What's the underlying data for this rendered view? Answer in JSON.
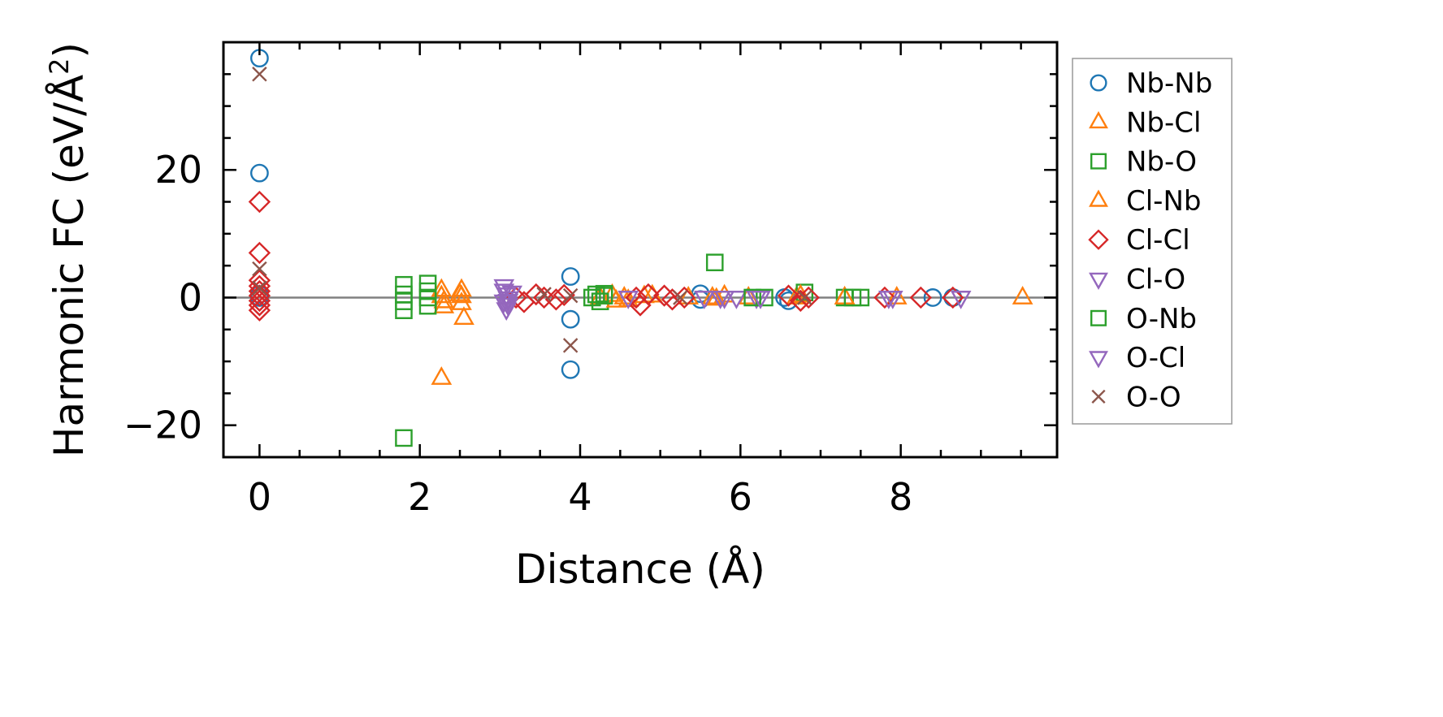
{
  "chart_data": {
    "type": "scatter",
    "xlabel": "Distance (Å)",
    "ylabel": "Harmonic FC (eV/Å²)",
    "ylabel_main": "Harmonic FC (eV/Å",
    "ylabel_sup": "2",
    "ylabel_end": ")",
    "xlim": [
      -0.45,
      9.95
    ],
    "ylim": [
      -25,
      40
    ],
    "xticks": [
      0,
      2,
      4,
      6,
      8
    ],
    "xtick_labels": [
      "0",
      "2",
      "4",
      "6",
      "8"
    ],
    "yticks": [
      -20,
      0,
      20
    ],
    "ytick_labels": [
      "−20",
      "0",
      "20"
    ],
    "zero_line": true,
    "grid": false,
    "legend_position": "outside-right",
    "series": [
      {
        "name": "Nb-Nb",
        "marker": "circle",
        "color": "#1f77b4",
        "x": [
          0,
          0,
          0,
          0,
          3.88,
          3.88,
          3.88,
          5.5,
          5.5,
          6.55,
          6.6,
          8.4,
          8.65
        ],
        "y": [
          37.5,
          19.5,
          0,
          0.5,
          3.3,
          -3.4,
          -11.3,
          0.6,
          -0.3,
          0,
          -0.5,
          0,
          0
        ]
      },
      {
        "name": "Nb-Cl",
        "marker": "triangle-up",
        "color": "#ff7f0e",
        "x": [
          2.27,
          2.27,
          2.3,
          2.3,
          2.52,
          2.52,
          2.52,
          2.55,
          2.27,
          4.25,
          4.4,
          4.6,
          4.8,
          5.65,
          5.8,
          6.1,
          6.7,
          7.3,
          7.95,
          9.52
        ],
        "y": [
          1.2,
          0.2,
          -0.6,
          -1.4,
          1.2,
          0.2,
          -0.9,
          -3.2,
          -12.6,
          0,
          0.4,
          -0.4,
          0.2,
          0,
          0.3,
          0,
          0,
          0,
          0,
          0
        ]
      },
      {
        "name": "Nb-O",
        "marker": "square",
        "color": "#2ca02c",
        "x": [
          1.8,
          1.8,
          1.8,
          1.8,
          2.1,
          2.1,
          2.1,
          2.1,
          1.8,
          4.2,
          4.3,
          4.25,
          5.68,
          6.3,
          6.8,
          7.3,
          7.5
        ],
        "y": [
          2,
          0.5,
          -0.6,
          -2,
          2.2,
          1,
          0,
          -1.3,
          -22,
          0.5,
          0.6,
          -0.6,
          5.5,
          0,
          0.8,
          0,
          0
        ]
      },
      {
        "name": "Cl-Nb",
        "marker": "triangle-up",
        "color": "#ff7f0e",
        "x": [
          2.5,
          4.45,
          4.55,
          4.9,
          5.35,
          5.7,
          6.75,
          7.3
        ],
        "y": [
          0.5,
          -0.5,
          0,
          0.3,
          0,
          -0.2,
          0.3,
          0
        ]
      },
      {
        "name": "Cl-Cl",
        "marker": "diamond",
        "color": "#d62728",
        "x": [
          0,
          0,
          0,
          0,
          0,
          0,
          0,
          0,
          0,
          3.2,
          3.3,
          3.45,
          3.55,
          3.7,
          3.8,
          4.7,
          4.75,
          4.85,
          5.05,
          5.15,
          5.3,
          6.6,
          6.75,
          6.85,
          7.8,
          8.25,
          8.65
        ],
        "y": [
          15,
          7,
          2.7,
          1.8,
          1,
          0.3,
          -0.5,
          -1.2,
          -2,
          0,
          -0.7,
          0.5,
          0,
          -0.3,
          0.4,
          0,
          -1.2,
          0.5,
          0.3,
          -0.3,
          0,
          0.3,
          -0.5,
          0,
          0,
          0,
          0
        ]
      },
      {
        "name": "Cl-O",
        "marker": "triangle-down",
        "color": "#9467bd",
        "x": [
          3.05,
          3.05,
          3.08,
          3.1,
          3.05,
          3.1,
          3.08,
          4.6,
          5.8,
          5.95,
          6.2,
          7.9
        ],
        "y": [
          1.8,
          1.1,
          0.5,
          -0.1,
          -0.6,
          -1.1,
          -1.8,
          0,
          0,
          0,
          0,
          0
        ]
      },
      {
        "name": "O-Nb",
        "marker": "square",
        "color": "#2ca02c",
        "x": [
          4.15,
          4.3,
          6.15,
          7.4
        ],
        "y": [
          0,
          0.3,
          0,
          0
        ]
      },
      {
        "name": "O-Cl",
        "marker": "triangle-down",
        "color": "#9467bd",
        "x": [
          3.15,
          3.1,
          5.55,
          5.75,
          6.25,
          7.85,
          8.75
        ],
        "y": [
          0.8,
          -0.5,
          0,
          0,
          0,
          0,
          0
        ]
      },
      {
        "name": "O-O",
        "marker": "x",
        "color": "#8c564b",
        "x": [
          0,
          0,
          0,
          3.55,
          3.88,
          3.88,
          5.25,
          6.8
        ],
        "y": [
          35,
          4.5,
          1.5,
          0.5,
          -7.5,
          0.3,
          0,
          0
        ]
      }
    ]
  }
}
